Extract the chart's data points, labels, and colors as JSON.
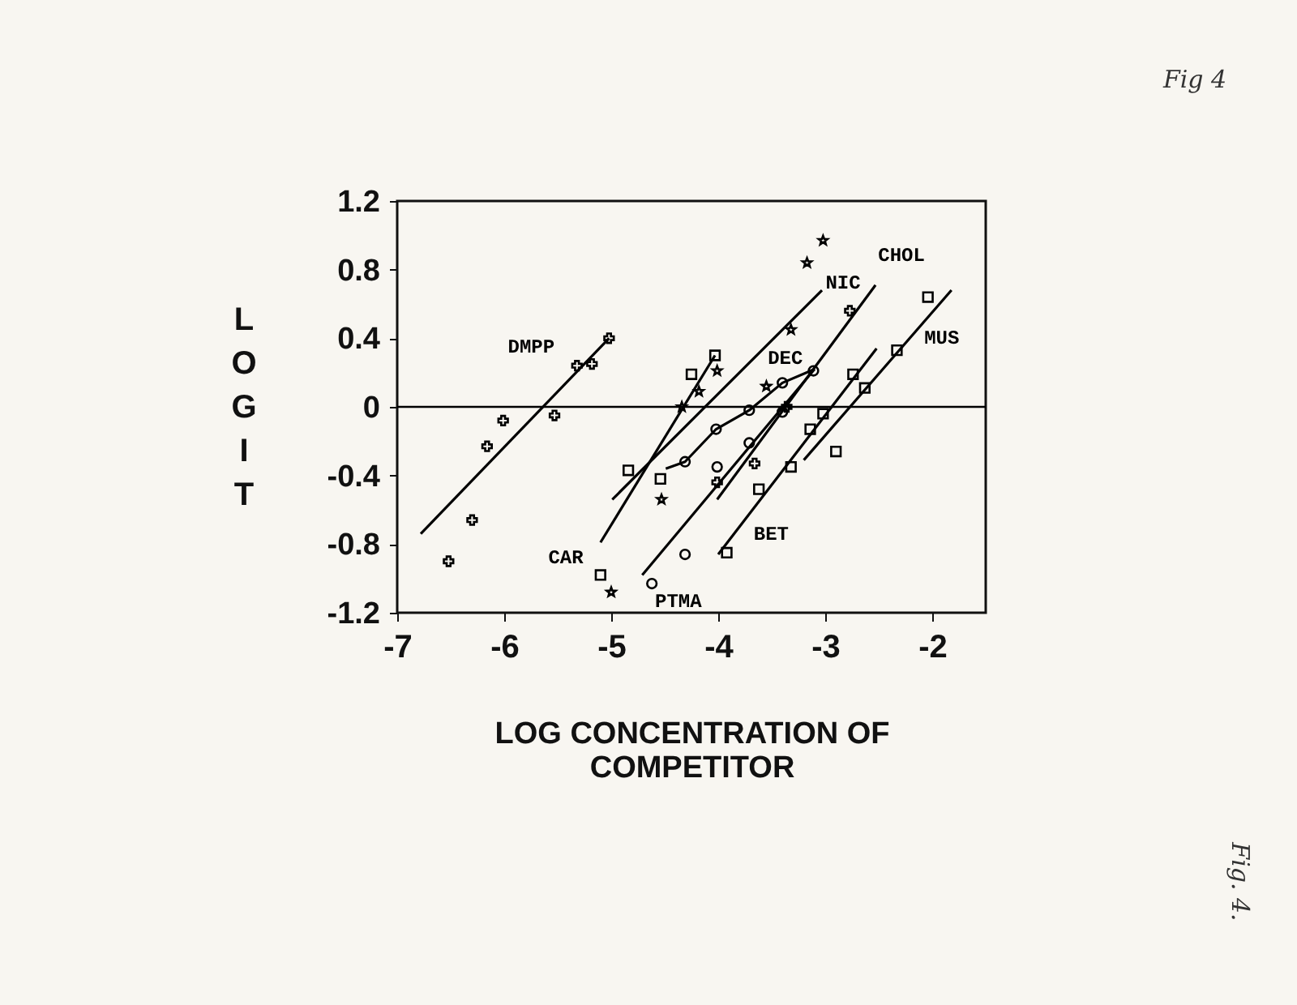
{
  "chart_data": {
    "type": "scatter",
    "xlabel": "LOG CONCENTRATION OF\nCOMPETITOR",
    "ylabel": "LOGIT",
    "xlim": [
      -7,
      -1.5
    ],
    "xticks": [
      -7,
      -6,
      -5,
      -4,
      -3,
      -2
    ],
    "ylim": [
      -1.2,
      1.2
    ],
    "yticks": [
      -1.2,
      -0.8,
      -0.4,
      0,
      0.4,
      0.8,
      1.2
    ],
    "grid": false,
    "ref_lines": [
      {
        "axis": "y",
        "value": 0,
        "color": "#000000"
      }
    ],
    "series": [
      {
        "marker": "cross",
        "color": "#000000",
        "x": [
          -6.52,
          -6.3,
          -6.16,
          -6.01,
          -5.53,
          -5.32,
          -5.18,
          -5.02
        ],
        "values": [
          -0.9,
          -0.66,
          -0.23,
          -0.08,
          -0.05,
          0.24,
          0.25,
          0.4
        ]
      },
      {
        "type": "line",
        "name": "DMPP",
        "color": "#000000",
        "x": [
          -6.78,
          -5.02
        ],
        "values": [
          -0.74,
          0.4
        ]
      },
      {
        "marker": "square",
        "color": "#000000",
        "x": [
          -5.1,
          -4.84,
          -4.54,
          -4.25,
          -4.03
        ],
        "values": [
          -0.98,
          -0.37,
          -0.42,
          0.19,
          0.3
        ]
      },
      {
        "type": "line",
        "name": "CAR",
        "color": "#000000",
        "x": [
          -5.1,
          -4.03
        ],
        "values": [
          -0.79,
          0.3
        ]
      },
      {
        "marker": "star",
        "color": "#000000",
        "x": [
          -5.0,
          -4.53,
          -4.34,
          -4.18,
          -4.01,
          -3.55,
          -3.32,
          -3.17,
          -3.02
        ],
        "values": [
          -1.08,
          -0.54,
          0.0,
          0.09,
          0.21,
          0.12,
          0.45,
          0.84,
          0.97
        ]
      },
      {
        "type": "line",
        "name": "NIC",
        "color": "#000000",
        "x": [
          -4.99,
          -3.03
        ],
        "values": [
          -0.54,
          0.68
        ]
      },
      {
        "marker": "cross",
        "color": "#000000",
        "x": [
          -4.01,
          -3.66,
          -3.36,
          -2.77
        ],
        "values": [
          -0.44,
          -0.33,
          0.0,
          0.56
        ]
      },
      {
        "type": "line",
        "name": "CHOL",
        "color": "#000000",
        "x": [
          -4.01,
          -2.53
        ],
        "values": [
          -0.54,
          0.71
        ]
      },
      {
        "marker": "circle",
        "color": "#000000",
        "x": [
          -4.31,
          -4.02,
          -3.71,
          -3.4,
          -3.11
        ],
        "values": [
          -0.32,
          -0.13,
          -0.02,
          0.14,
          0.21
        ]
      },
      {
        "type": "line",
        "name": "DEC",
        "color": "#000000",
        "x": [
          -4.49,
          -4.31,
          -4.02,
          -3.71,
          -3.4,
          -3.1
        ],
        "values": [
          -0.36,
          -0.32,
          -0.13,
          -0.02,
          0.14,
          0.22
        ]
      },
      {
        "marker": "circle",
        "color": "#000000",
        "x": [
          -4.62,
          -4.31,
          -4.01,
          -3.71,
          -3.4
        ],
        "values": [
          -1.03,
          -0.86,
          -0.35,
          -0.21,
          -0.03
        ]
      },
      {
        "type": "line",
        "name": "PTMA",
        "color": "#000000",
        "x": [
          -4.71,
          -3.1
        ],
        "values": [
          -0.98,
          0.22
        ]
      },
      {
        "marker": "square",
        "color": "#000000",
        "x": [
          -3.92,
          -3.62,
          -3.32,
          -3.02,
          -2.74
        ],
        "values": [
          -0.85,
          -0.48,
          -0.35,
          -0.04,
          0.19
        ]
      },
      {
        "type": "line",
        "name": "BET",
        "color": "#000000",
        "x": [
          -4.0,
          -2.52
        ],
        "values": [
          -0.86,
          0.34
        ]
      },
      {
        "marker": "square",
        "color": "#000000",
        "x": [
          -3.14,
          -2.9,
          -2.63,
          -2.33,
          -2.04
        ],
        "values": [
          -0.13,
          -0.26,
          0.11,
          0.33,
          0.64
        ]
      },
      {
        "type": "line",
        "name": "MUS",
        "color": "#000000",
        "x": [
          -3.2,
          -1.82
        ],
        "values": [
          -0.31,
          0.68
        ]
      }
    ],
    "annotations": [
      "Fig 4",
      "Fig. 4."
    ]
  }
}
